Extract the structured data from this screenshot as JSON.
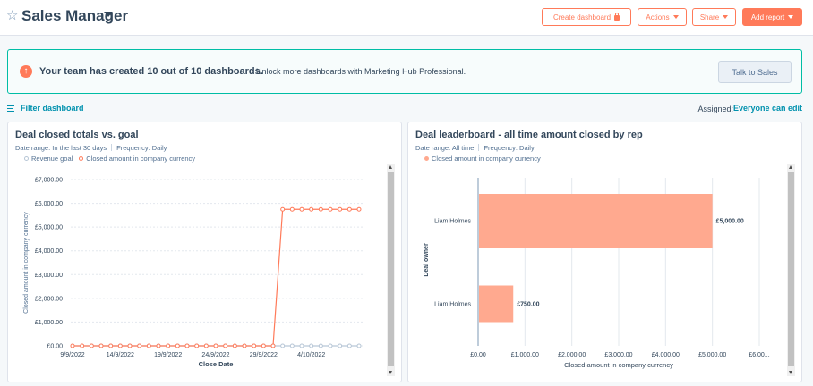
{
  "header": {
    "title": "Sales Manager",
    "create_dashboard_label": "Create dashboard",
    "actions_label": "Actions",
    "share_label": "Share",
    "add_report_label": "Add report"
  },
  "banner": {
    "strong_text": "Your team has created 10 out of 10 dashboards.",
    "text": "Unlock more dashboards with Marketing Hub Professional.",
    "button_label": "Talk to Sales"
  },
  "filter": {
    "label": "Filter dashboard",
    "assigned_label": "Assigned:",
    "assigned_value": "Everyone can edit"
  },
  "colors": {
    "accent": "#ff7a59",
    "link": "#0091ae",
    "bar": "#ffa98f",
    "goal": "#b7c6d6"
  },
  "report1": {
    "title": "Deal closed totals vs. goal",
    "date_range": "Date range: In the last 30 days",
    "frequency": "Frequency: Daily",
    "legend": [
      "Revenue goal",
      "Closed amount in company currency"
    ]
  },
  "report2": {
    "title": "Deal leaderboard - all time amount closed by rep",
    "date_range": "Date range: All time",
    "frequency": "Frequency: Daily",
    "legend": [
      "Closed amount in company currency"
    ]
  },
  "chart_data": [
    {
      "type": "line",
      "xlabel": "Close Date",
      "ylabel": "Closed amount in company currency",
      "ylim": [
        0,
        7000
      ],
      "yticks": [
        "£0.00",
        "£1,000.00",
        "£2,000.00",
        "£3,000.00",
        "£4,000.00",
        "£5,000.00",
        "£6,000.00",
        "£7,000.00"
      ],
      "xtick_labels": [
        "9/9/2022",
        "14/9/2022",
        "19/9/2022",
        "24/9/2022",
        "29/9/2022",
        "4/10/2022"
      ],
      "grid": true,
      "legend_position": "top-left",
      "series": [
        {
          "name": "Revenue goal",
          "values": [
            0,
            0,
            0,
            0,
            0,
            0,
            0,
            0,
            0,
            0,
            0,
            0,
            0,
            0,
            0,
            0,
            0,
            0,
            0,
            0,
            0,
            0,
            0,
            0,
            0,
            0,
            0,
            0,
            0,
            0,
            0
          ]
        },
        {
          "name": "Closed amount in company currency",
          "values": [
            0,
            0,
            0,
            0,
            0,
            0,
            0,
            0,
            0,
            0,
            0,
            0,
            0,
            0,
            0,
            0,
            0,
            0,
            0,
            0,
            0,
            0,
            5750,
            5750,
            5750,
            5750,
            5750,
            5750,
            5750,
            5750,
            5750
          ]
        }
      ]
    },
    {
      "type": "bar",
      "orientation": "horizontal",
      "categories": [
        "Liam Holmes",
        "Liam Holmes"
      ],
      "values": [
        5000,
        750
      ],
      "value_labels": [
        "£5,000.00",
        "£750.00"
      ],
      "xlabel": "Closed amount in company currency",
      "ylabel": "Deal owner",
      "xlim": [
        0,
        6000
      ],
      "xticks": [
        "£0.00",
        "£1,000.00",
        "£2,000.00",
        "£3,000.00",
        "£4,000.00",
        "£5,000.00",
        "£6,00..."
      ],
      "grid": true,
      "legend_position": "top-left",
      "series": [
        {
          "name": "Closed amount in company currency",
          "values": [
            5000,
            750
          ]
        }
      ]
    }
  ]
}
